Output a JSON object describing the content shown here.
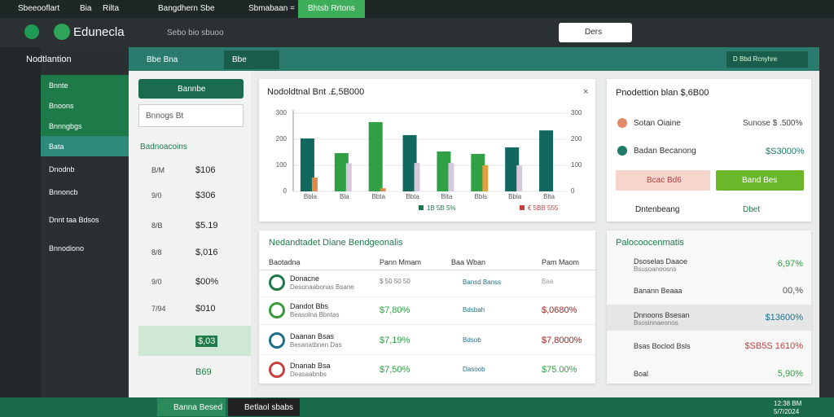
{
  "tabs": [
    "Sbeeooflart",
    "Bia",
    "Rilta",
    "Bangdhern Sbe",
    "Sbmabaan =",
    "Bhtsb Rrtons"
  ],
  "header": {
    "logo": "Edunecla",
    "search": "Sebo bio sbuoo",
    "button": "Ders"
  },
  "nav": {
    "title": "Nodtlantion",
    "items": [
      "Bnnte",
      "Bnoons",
      "Bnnngbgs",
      "Bata",
      "Dnodnb",
      "Bnnoncb",
      "Dnnt taa Bdsos",
      "Bnnodiono"
    ]
  },
  "toolbar": {
    "tabs": [
      "Bbe Bna",
      "Bbe"
    ],
    "button": "D Bbd Rcnyhre"
  },
  "filters": {
    "dropdown": "Bannbe",
    "select": "Bnnogs Bt",
    "heading": "Badnoacoins",
    "rows": [
      {
        "label": "B/M",
        "value": "$106"
      },
      {
        "label": "9/0",
        "value": "$306"
      },
      {
        "label": "8/B",
        "value": "$5.19"
      },
      {
        "label": "8/8",
        "value": "$,016"
      },
      {
        "label": "9/0",
        "value": "$00%"
      },
      {
        "label": "7/94",
        "value": "$010"
      },
      {
        "value": "$,03"
      },
      {
        "value": "B69"
      }
    ]
  },
  "chart_data": {
    "type": "bar",
    "title": "Nodoldtnal Bnt .£,5B000",
    "categories": [
      "Bbla",
      "Bla",
      "Bbta",
      "Bbta",
      "Blta",
      "Bbls",
      "Bbla",
      "Blta"
    ],
    "series": [
      {
        "name": "1B 5B 5%",
        "color": "#1f7a4a",
        "colors": [
          "#12685f",
          "#2fa043",
          "#2fa043",
          "#12685f",
          "#2fa043",
          "#2fa043",
          "#12685f",
          "#12685f"
        ],
        "values": [
          203,
          147,
          266,
          216,
          153,
          144,
          169,
          234
        ]
      },
      {
        "name": "€ 5BB 555",
        "color": "#c84040",
        "colors": [
          "#e08a4a",
          "#d8c8dc",
          "#e08a4a",
          "#d8c8dc",
          "#d8c8dc",
          "#e0a040",
          "#d8c8dc",
          "#d8c8dc"
        ],
        "values": [
          53,
          108,
          12,
          109,
          109,
          100,
          100,
          null
        ]
      }
    ],
    "ylim": [
      0,
      300
    ],
    "yticks": [
      0,
      100,
      200,
      300
    ],
    "grid": true
  },
  "table": {
    "title": "Nedandtadet Diane Bendgeonalis",
    "headers": [
      "Baotadna",
      "Pann Mmam",
      "Baa Wban",
      "Pam Maom"
    ],
    "rows": [
      [
        "Donacne",
        "Desonaabonas Bsane",
        "$ 50 50 50",
        "Bansd Banss",
        "Baa"
      ],
      [
        "Dandot Bbs",
        "Beasolna Bbntas",
        "$7,80%",
        "Bdsbah",
        "$,0680%"
      ],
      [
        "Daanan Bsas",
        "Besanatbnen Das",
        "$7,19%",
        "Bdsob",
        "$7,8000%"
      ],
      [
        "Dnanab Bsa",
        "Deasaabnbs",
        "$7,50%",
        "Dasoob",
        "$75.00%"
      ]
    ]
  },
  "summary": {
    "title": "Pnodettion blan $,6B00",
    "items": [
      {
        "label": "Sotan Oiaine",
        "value": "Sunose $ .500%"
      },
      {
        "label": "Badan Becanong",
        "value": "$S3000%"
      }
    ],
    "buttons": [
      "Bcac Bd6",
      "Band Bes"
    ],
    "status": {
      "label": "Dntenbeang",
      "value": "Dbet"
    }
  },
  "analytics": {
    "title": "Palocoocenmatis",
    "rows": [
      {
        "label": "Dsoselas Daaoe",
        "sub": "Bsusoanoosns",
        "value": "6,97%"
      },
      {
        "label": "Banann Beaaa",
        "value": "00,%"
      },
      {
        "label": "Dnnoons Bsesan",
        "sub": "Bsosinnaeonos",
        "value": "$13600%"
      },
      {
        "label": "Bsas Boclod Bsls",
        "value": "$SB5S 1610%"
      },
      {
        "label": "Boal",
        "value": "5,90%"
      }
    ]
  },
  "taskbar": {
    "apps": [
      "Banna Besed",
      "Betlaol sbabs"
    ],
    "time": "12:38 BM",
    "date": "5/7/2024"
  }
}
